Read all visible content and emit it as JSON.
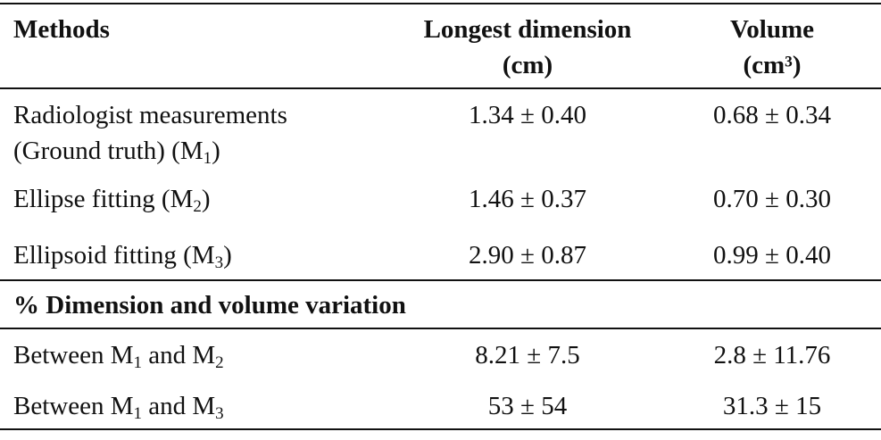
{
  "header": {
    "methods": "Methods",
    "dimension_line1": "Longest dimension",
    "dimension_line2": "(cm)",
    "volume_line1": "Volume",
    "volume_line2": "(cm³)"
  },
  "rows": [
    {
      "method_line1": "Radiologist measurements",
      "method_line2_prefix": "(Ground truth)   (M",
      "method_line2_sub": "1",
      "method_line2_suffix": ")",
      "dimension": "1.34 ± 0.40",
      "volume": "0.68 ± 0.34"
    },
    {
      "method_prefix": "Ellipse fitting    (M",
      "method_sub": "2",
      "method_suffix": ")",
      "dimension": "1.46 ± 0.37",
      "volume": "0.70 ± 0.30"
    },
    {
      "method_prefix": "Ellipsoid fitting (M",
      "method_sub": "3",
      "method_suffix": ")",
      "dimension": "2.90 ± 0.87",
      "volume": "0.99 ± 0.40"
    }
  ],
  "section_title": "% Dimension and volume variation",
  "variation_rows": [
    {
      "label_a": "Between M",
      "sub_a": "1",
      "label_b": " and M",
      "sub_b": "2",
      "dimension": "8.21 ± 7.5",
      "volume": "2.8 ± 11.76"
    },
    {
      "label_a": "Between M",
      "sub_a": "1",
      "label_b": " and M",
      "sub_b": "3",
      "dimension": "53 ± 54",
      "volume": "31.3 ± 15"
    }
  ]
}
